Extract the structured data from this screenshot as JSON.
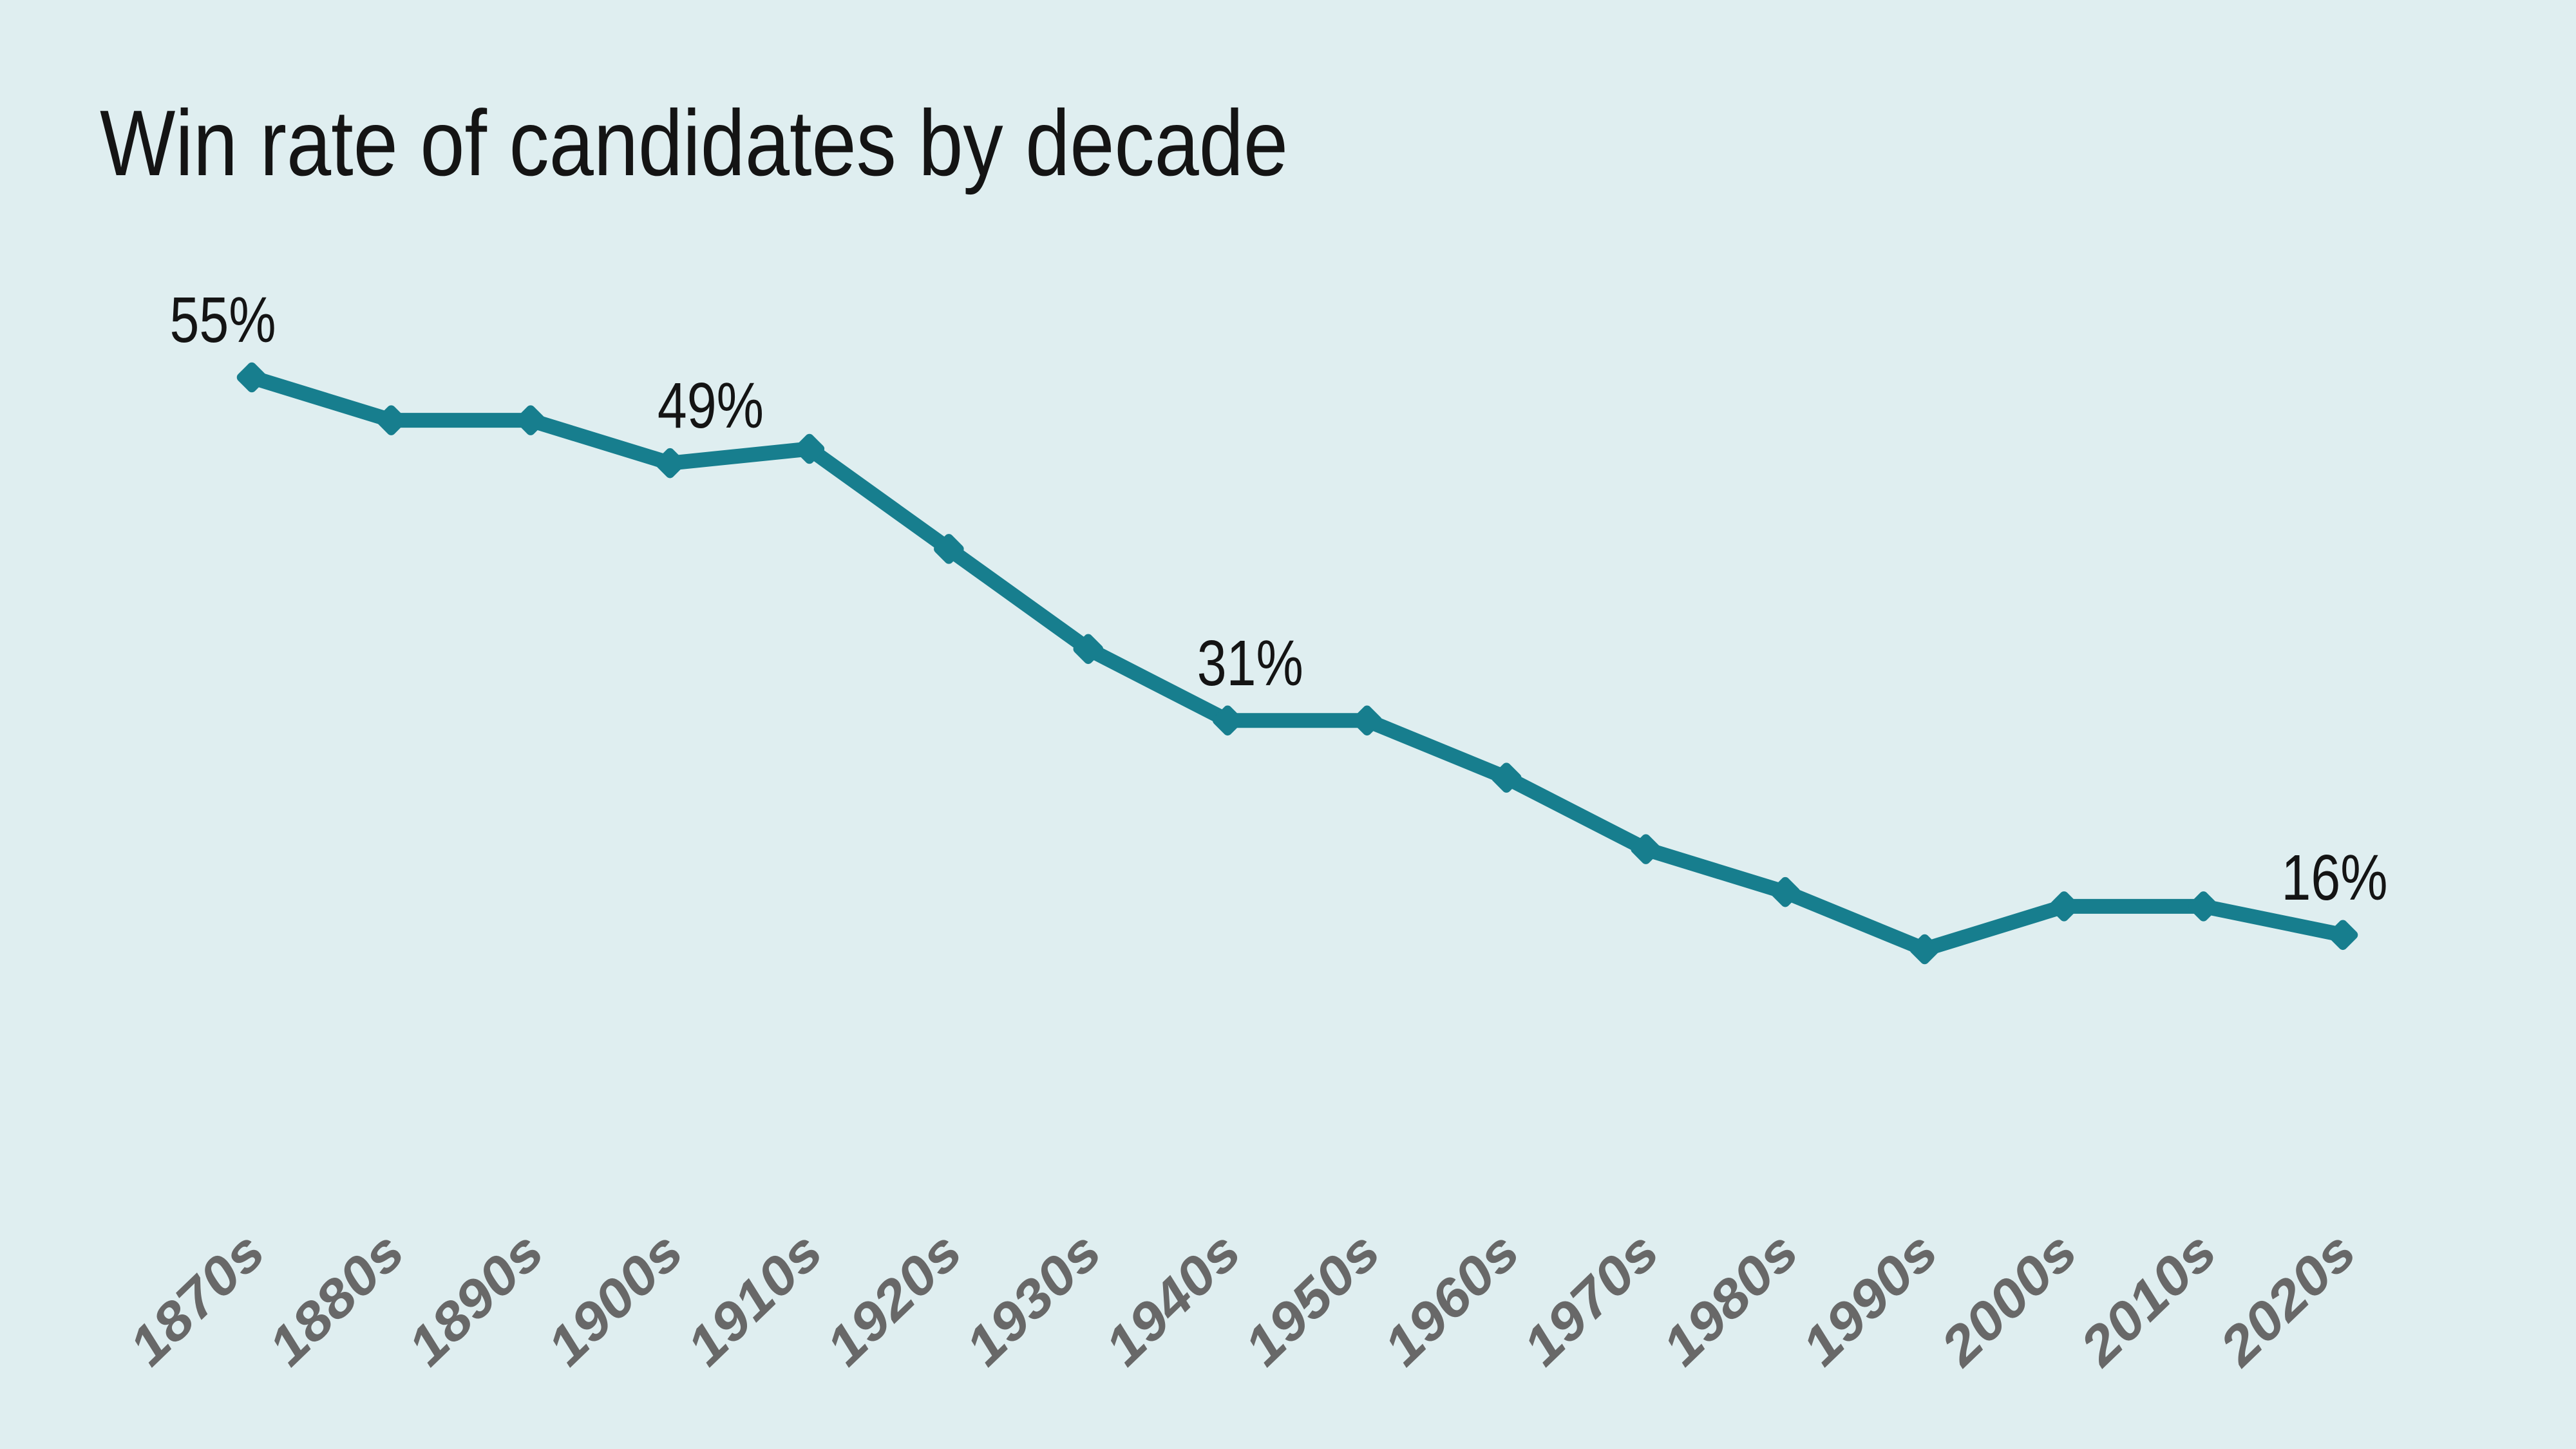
{
  "chart_data": {
    "type": "line",
    "title": "Win rate of candidates by decade",
    "categories": [
      "1870s",
      "1880s",
      "1890s",
      "1900s",
      "1910s",
      "1920s",
      "1930s",
      "1940s",
      "1950s",
      "1960s",
      "1970s",
      "1980s",
      "1990s",
      "2000s",
      "2010s",
      "2020s"
    ],
    "values": [
      55,
      52,
      52,
      49,
      50,
      43,
      36,
      31,
      31,
      27,
      22,
      19,
      15,
      18,
      18,
      16
    ],
    "unit": "%",
    "annotations": [
      {
        "category": "1870s",
        "label": "55%",
        "dx": -45
      },
      {
        "category": "1900s",
        "label": "49%",
        "dx": 63
      },
      {
        "category": "1940s",
        "label": "31%",
        "dx": 35
      },
      {
        "category": "2020s",
        "label": "16%",
        "dx": -13
      }
    ],
    "colors": {
      "background": "#dfeef0",
      "line": "#177e8e",
      "marker": "#177e8e",
      "title_text": "#141414",
      "value_text": "#141414",
      "axis_text": "#686868"
    },
    "legend": "none",
    "grid": false,
    "y_axis": "hidden",
    "x_axis_label_rotation_deg": -44,
    "ylim": [
      0,
      60
    ]
  }
}
